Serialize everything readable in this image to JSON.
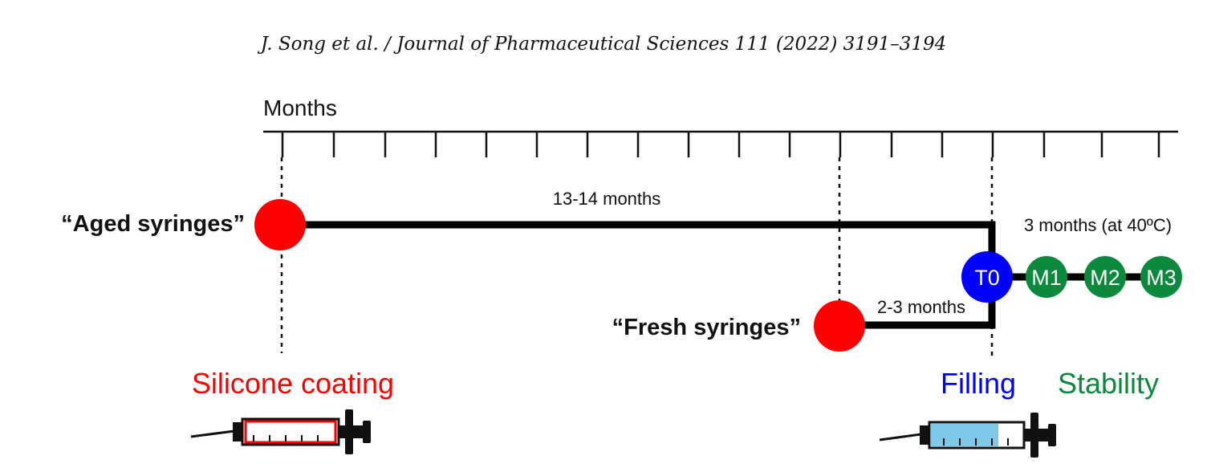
{
  "header": {
    "citation": "J. Song et al. / Journal of Pharmaceutical Sciences 111 (2022) 3191–3194"
  },
  "axis": {
    "label": "Months"
  },
  "aged": {
    "label": "“Aged syringes”",
    "duration": "13-14 months"
  },
  "fresh": {
    "label": "“Fresh syringes”",
    "duration": "2-3 months"
  },
  "stability": {
    "condition": "3 months (at 40ºC)"
  },
  "timepoints": [
    {
      "id": "T0",
      "label": "T0",
      "color": "#0000ff"
    },
    {
      "id": "M1",
      "label": "M1",
      "color": "#0b8a3e"
    },
    {
      "id": "M2",
      "label": "M2",
      "color": "#0b8a3e"
    },
    {
      "id": "M3",
      "label": "M3",
      "color": "#0b8a3e"
    }
  ],
  "stages": {
    "silicone": {
      "label": "Silicone coating",
      "color": "#ff0000"
    },
    "filling": {
      "label": "Filling",
      "color": "#0000ff"
    },
    "stability": {
      "label": "Stability",
      "color": "#0b8a3e"
    }
  },
  "colors": {
    "syringe_node": "#ff0000",
    "liquid": "#7ec8ea"
  }
}
